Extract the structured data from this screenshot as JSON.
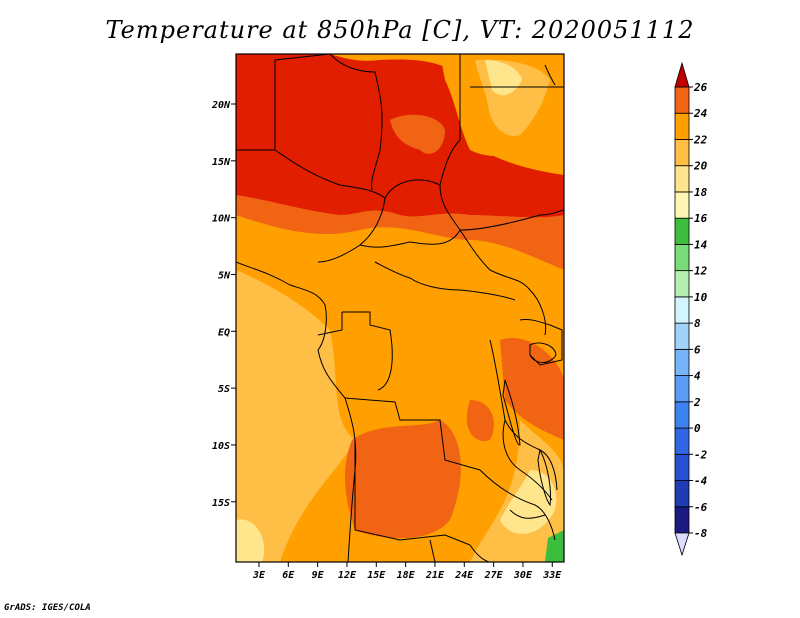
{
  "title": "Temperature at 850hPa [C], VT: 2020051112",
  "credit": "GrADS: IGES/COLA",
  "map": {
    "lat_labels": [
      {
        "lat": 20,
        "label": "20N"
      },
      {
        "lat": 15,
        "label": "15N"
      },
      {
        "lat": 10,
        "label": "10N"
      },
      {
        "lat": 5,
        "label": "5N"
      },
      {
        "lat": 0,
        "label": "EQ"
      },
      {
        "lat": -5,
        "label": "5S"
      },
      {
        "lat": -10,
        "label": "10S"
      },
      {
        "lat": -15,
        "label": "15S"
      }
    ],
    "lon_labels": [
      {
        "lon": 3,
        "label": "3E"
      },
      {
        "lon": 6,
        "label": "6E"
      },
      {
        "lon": 9,
        "label": "9E"
      },
      {
        "lon": 12,
        "label": "12E"
      },
      {
        "lon": 15,
        "label": "15E"
      },
      {
        "lon": 18,
        "label": "18E"
      },
      {
        "lon": 21,
        "label": "21E"
      },
      {
        "lon": 24,
        "label": "24E"
      },
      {
        "lon": 27,
        "label": "27E"
      },
      {
        "lon": 30,
        "label": "30E"
      },
      {
        "lon": 33,
        "label": "33E"
      }
    ]
  },
  "colorbar": {
    "levels": [
      {
        "value": -8,
        "label": "-8",
        "color": "#1a1a80"
      },
      {
        "value": -6,
        "label": "-6",
        "color": "#1e3cb4"
      },
      {
        "value": -4,
        "label": "-4",
        "color": "#2850d2"
      },
      {
        "value": -2,
        "label": "-2",
        "color": "#3264e6"
      },
      {
        "value": 0,
        "label": "0",
        "color": "#3c82f0"
      },
      {
        "value": 2,
        "label": "2",
        "color": "#5a9cf5"
      },
      {
        "value": 4,
        "label": "4",
        "color": "#78b4f8"
      },
      {
        "value": 6,
        "label": "6",
        "color": "#a0d2fa"
      },
      {
        "value": 8,
        "label": "8",
        "color": "#d2f5ff"
      },
      {
        "value": 10,
        "label": "10",
        "color": "#b4f0b4"
      },
      {
        "value": 12,
        "label": "12",
        "color": "#78dc78"
      },
      {
        "value": 14,
        "label": "14",
        "color": "#3cbe3c"
      },
      {
        "value": 16,
        "label": "16",
        "color": "#fff5b4"
      },
      {
        "value": 18,
        "label": "18",
        "color": "#ffe68c"
      },
      {
        "value": 20,
        "label": "20",
        "color": "#ffbe46"
      },
      {
        "value": 22,
        "label": "22",
        "color": "#ffa000"
      },
      {
        "value": 24,
        "label": "24",
        "color": "#f06414"
      },
      {
        "value": 26,
        "label": "26",
        "color": "#e11e00"
      }
    ],
    "below_color": "#dcdcff",
    "above_color": "#c00000"
  }
}
